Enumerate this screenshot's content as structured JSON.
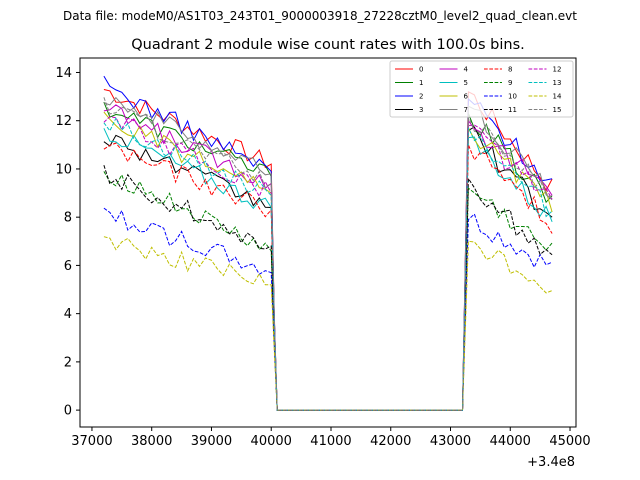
{
  "header": "Data file: modeM0/AS1T03_243T01_9000003918_27228cztM0_level2_quad_clean.evt",
  "chart_data": {
    "type": "line",
    "title": "Quadrant 2 module wise count rates with 100.0s bins.",
    "xlabel": "",
    "ylabel": "",
    "x_offset_label": "+3.4e8",
    "xlim": [
      36800,
      45100
    ],
    "ylim": [
      -0.7,
      14.6
    ],
    "x_ticks": [
      37000,
      38000,
      39000,
      40000,
      41000,
      42000,
      43000,
      44000,
      45000
    ],
    "x_tick_labels": [
      "37000",
      "38000",
      "39000",
      "40000",
      "41000",
      "42000",
      "43000",
      "44000",
      "45000"
    ],
    "y_ticks": [
      0,
      2,
      4,
      6,
      8,
      10,
      12,
      14
    ],
    "y_tick_labels": [
      "0",
      "2",
      "4",
      "6",
      "8",
      "10",
      "12",
      "14"
    ],
    "segment_1": {
      "x_start": 37200,
      "x_end": 40000,
      "step": 100
    },
    "gap": {
      "x_start": 40100,
      "x_end": 43200,
      "value": 0
    },
    "segment_2": {
      "x_start": 43300,
      "x_end": 44700,
      "step": 100
    },
    "legend_position": "upper-right",
    "series": [
      {
        "name": "0",
        "color": "#ff0000",
        "dash": "solid",
        "seg1_start": 13.3,
        "seg1_end": 10.2,
        "seg2_start": 13.2,
        "seg2_end": 9.2
      },
      {
        "name": "1",
        "color": "#008000",
        "dash": "solid",
        "seg1_start": 12.6,
        "seg1_end": 9.7,
        "seg2_start": 12.3,
        "seg2_end": 8.6
      },
      {
        "name": "2",
        "color": "#0000ff",
        "dash": "solid",
        "seg1_start": 13.5,
        "seg1_end": 9.9,
        "seg2_start": 12.9,
        "seg2_end": 9.4
      },
      {
        "name": "3",
        "color": "#000000",
        "dash": "solid",
        "seg1_start": 11.4,
        "seg1_end": 8.4,
        "seg2_start": 11.6,
        "seg2_end": 7.9
      },
      {
        "name": "4",
        "color": "#bf00bf",
        "dash": "solid",
        "seg1_start": 12.5,
        "seg1_end": 9.4,
        "seg2_start": 12.0,
        "seg2_end": 8.9
      },
      {
        "name": "5",
        "color": "#00bfbf",
        "dash": "solid",
        "seg1_start": 11.6,
        "seg1_end": 8.4,
        "seg2_start": 11.3,
        "seg2_end": 7.9
      },
      {
        "name": "6",
        "color": "#bfbf00",
        "dash": "solid",
        "seg1_start": 12.1,
        "seg1_end": 9.0,
        "seg2_start": 11.7,
        "seg2_end": 8.4
      },
      {
        "name": "7",
        "color": "#808080",
        "dash": "solid",
        "seg1_start": 13.1,
        "seg1_end": 9.8,
        "seg2_start": 12.6,
        "seg2_end": 9.0
      },
      {
        "name": "8",
        "color": "#ff0000",
        "dash": "dashed",
        "seg1_start": 11.0,
        "seg1_end": 8.3,
        "seg2_start": 11.0,
        "seg2_end": 7.7
      },
      {
        "name": "9",
        "color": "#008000",
        "dash": "dashed",
        "seg1_start": 9.9,
        "seg1_end": 6.6,
        "seg2_start": 9.2,
        "seg2_end": 6.5
      },
      {
        "name": "10",
        "color": "#0000ff",
        "dash": "dashed",
        "seg1_start": 8.2,
        "seg1_end": 5.7,
        "seg2_start": 7.9,
        "seg2_end": 5.8
      },
      {
        "name": "11",
        "color": "#000000",
        "dash": "dashed",
        "seg1_start": 9.8,
        "seg1_end": 6.8,
        "seg2_start": 9.6,
        "seg2_end": 6.2
      },
      {
        "name": "12",
        "color": "#bf00bf",
        "dash": "dashed",
        "seg1_start": 12.2,
        "seg1_end": 9.0,
        "seg2_start": 11.8,
        "seg2_end": 8.6
      },
      {
        "name": "13",
        "color": "#00bfbf",
        "dash": "dashed",
        "seg1_start": 12.0,
        "seg1_end": 8.9,
        "seg2_start": 11.7,
        "seg2_end": 8.2
      },
      {
        "name": "14",
        "color": "#bfbf00",
        "dash": "dashed",
        "seg1_start": 7.1,
        "seg1_end": 5.2,
        "seg2_start": 7.0,
        "seg2_end": 5.0
      },
      {
        "name": "15",
        "color": "#808080",
        "dash": "dashed",
        "seg1_start": 12.7,
        "seg1_end": 9.4,
        "seg2_start": 12.2,
        "seg2_end": 8.9
      }
    ]
  }
}
